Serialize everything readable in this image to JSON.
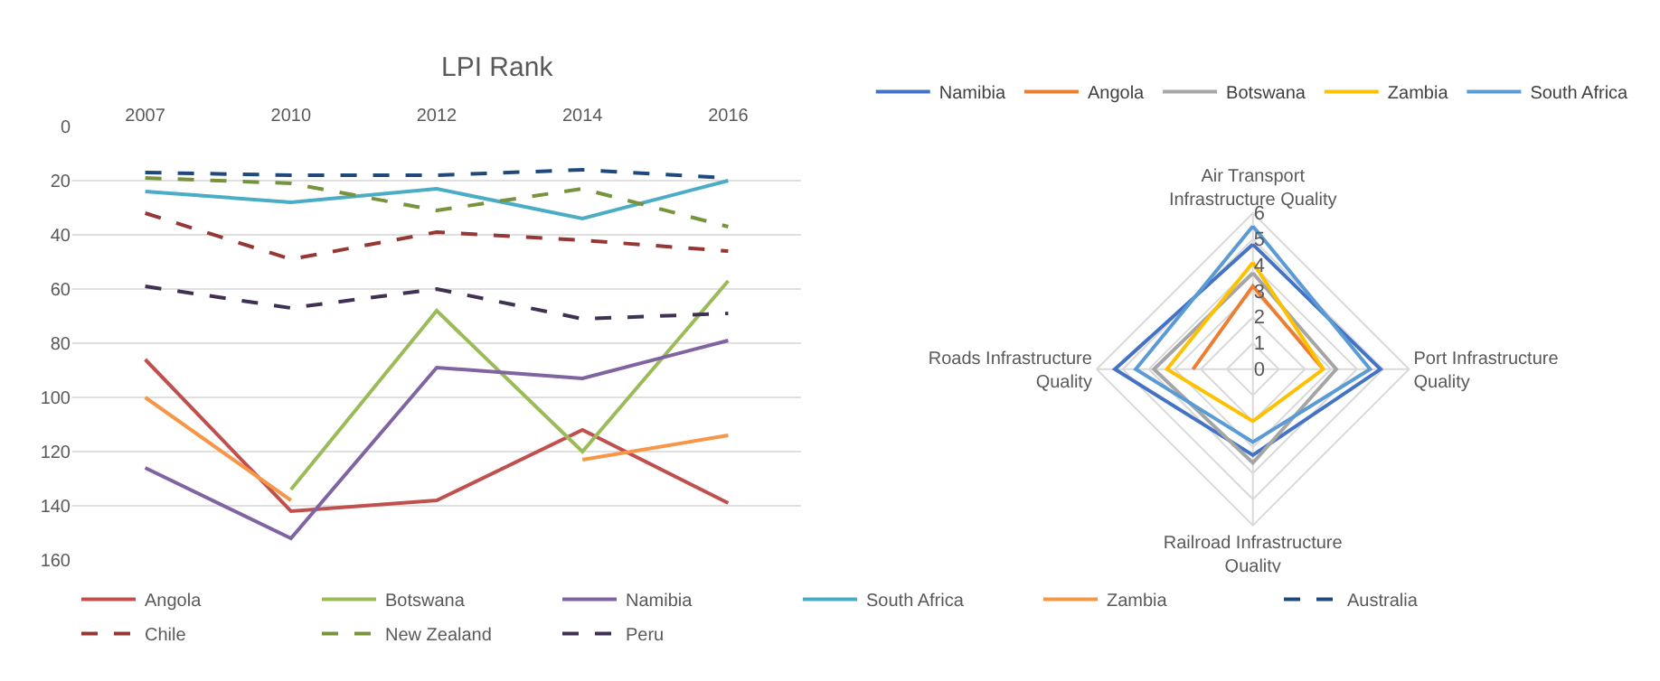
{
  "chart_data": [
    {
      "type": "line",
      "title": "LPI Rank",
      "categories": [
        "2007",
        "2010",
        "2012",
        "2014",
        "2016"
      ],
      "ylim": [
        160,
        0
      ],
      "yticks": [
        0,
        20,
        40,
        60,
        80,
        100,
        120,
        140,
        160
      ],
      "grid": "y",
      "legend": "bottom",
      "marker": "none",
      "series": [
        {
          "name": "Angola",
          "color": "#c0504d",
          "line_style": "solid",
          "values": [
            86,
            142,
            138,
            112,
            139
          ]
        },
        {
          "name": "Botswana",
          "color": "#9bbb59",
          "line_style": "solid",
          "values": [
            null,
            134,
            68,
            120,
            57
          ]
        },
        {
          "name": "Namibia",
          "color": "#8064a2",
          "line_style": "solid",
          "values": [
            126,
            152,
            89,
            93,
            79
          ]
        },
        {
          "name": "South Africa",
          "color": "#4bacc6",
          "line_style": "solid",
          "values": [
            24,
            28,
            23,
            34,
            20
          ]
        },
        {
          "name": "Zambia",
          "color": "#f79646",
          "line_style": "solid",
          "values": [
            100,
            138,
            null,
            123,
            114
          ]
        },
        {
          "name": "Australia",
          "color": "#1f497d",
          "line_style": "dashed",
          "values": [
            17,
            18,
            18,
            16,
            19
          ]
        },
        {
          "name": "Chile",
          "color": "#953735",
          "line_style": "dashed",
          "values": [
            32,
            49,
            39,
            42,
            46
          ]
        },
        {
          "name": "New Zealand",
          "color": "#77933c",
          "line_style": "dashed",
          "values": [
            19,
            21,
            31,
            23,
            37
          ]
        },
        {
          "name": "Peru",
          "color": "#403152",
          "line_style": "dashed",
          "values": [
            59,
            67,
            60,
            71,
            69
          ]
        }
      ]
    },
    {
      "type": "radar",
      "categories": [
        "Air Transport\nInfrastructure Quality",
        "Port Infrastructure\nQuality",
        "Railroad Infrastructure\nQuality",
        "Roads Infrastructure\nQuality"
      ],
      "ylim": [
        0,
        6
      ],
      "yticks": [
        0,
        1,
        2,
        3,
        4,
        5,
        6
      ],
      "grid": true,
      "legend": "top",
      "marker": "none",
      "series": [
        {
          "name": "Namibia",
          "color": "#4472c4",
          "values": [
            4.8,
            4.9,
            3.3,
            5.3
          ]
        },
        {
          "name": "Angola",
          "color": "#ed7d31",
          "values": [
            3.2,
            2.7,
            null,
            2.3
          ]
        },
        {
          "name": "Botswana",
          "color": "#a5a5a5",
          "values": [
            3.7,
            3.2,
            3.6,
            3.8
          ]
        },
        {
          "name": "Zambia",
          "color": "#ffc000",
          "values": [
            4.1,
            2.7,
            2.0,
            3.3
          ]
        },
        {
          "name": "South Africa",
          "color": "#5b9bd5",
          "values": [
            5.5,
            4.5,
            2.8,
            4.5
          ]
        }
      ]
    }
  ]
}
